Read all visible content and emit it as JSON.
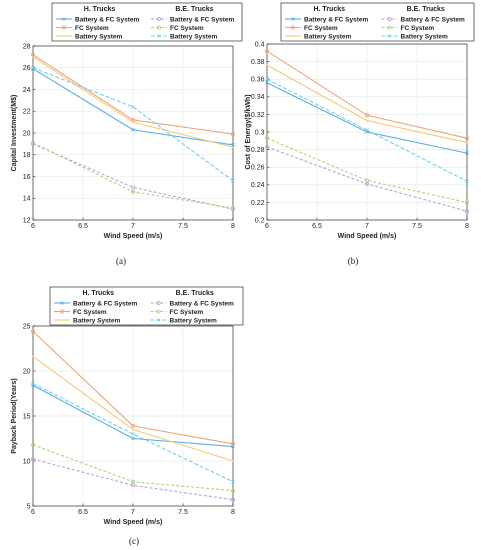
{
  "legend": {
    "group_h": "H. Trucks",
    "group_be": "B.E. Trucks",
    "labels": [
      "Battery & FC System",
      "FC System",
      "Battery System"
    ]
  },
  "colors": {
    "battery_fc": "#5aaee6",
    "fc": "#f2a37c",
    "battery": "#f5cb73",
    "be_battery_fc": "#c49fdc",
    "be_fc": "#a8d880",
    "be_battery": "#6fd3ee"
  },
  "chart_data": [
    {
      "type": "line",
      "caption": "(a)",
      "xlabel": "Wind Speed (m/s)",
      "ylabel": "Capital Investment(M$)",
      "xlim": [
        6,
        8
      ],
      "ylim": [
        12,
        28
      ],
      "xticks": [
        6,
        6.5,
        7,
        7.5,
        8
      ],
      "xtick_labels": [
        "6",
        "6.5",
        "7",
        "7.5",
        "8"
      ],
      "yticks": [
        12,
        14,
        16,
        18,
        20,
        22,
        24,
        26,
        28
      ],
      "ytick_labels": [
        "12",
        "14",
        "16",
        "18",
        "20",
        "22",
        "24",
        "26",
        "28"
      ],
      "x": [
        6,
        7,
        8
      ],
      "series": [
        {
          "name": "Battery & FC System",
          "group": "H. Trucks",
          "values": [
            25.9,
            20.3,
            18.9
          ]
        },
        {
          "name": "FC System",
          "group": "H. Trucks",
          "values": [
            27.2,
            21.2,
            19.9
          ]
        },
        {
          "name": "Battery System",
          "group": "H. Trucks",
          "values": [
            27.0,
            21.0,
            18.7
          ]
        },
        {
          "name": "Battery & FC System",
          "group": "B.E. Trucks",
          "values": [
            19.0,
            15.0,
            13.0
          ]
        },
        {
          "name": "FC System",
          "group": "B.E. Trucks",
          "values": [
            19.1,
            14.6,
            13.1
          ]
        },
        {
          "name": "Battery System",
          "group": "B.E. Trucks",
          "values": [
            26.0,
            22.4,
            15.6
          ]
        }
      ]
    },
    {
      "type": "line",
      "caption": "(b)",
      "xlabel": "Wind Speed (m/s)",
      "ylabel": "Cost of Energy($/kWh)",
      "xlim": [
        6,
        8
      ],
      "ylim": [
        0.2,
        0.4
      ],
      "xticks": [
        6,
        6.5,
        7,
        7.5,
        8
      ],
      "xtick_labels": [
        "6",
        "6.5",
        "7",
        "7.5",
        "8"
      ],
      "yticks": [
        0.2,
        0.22,
        0.24,
        0.26,
        0.28,
        0.3,
        0.32,
        0.34,
        0.36,
        0.38,
        0.4
      ],
      "ytick_labels": [
        "0.2",
        "0.22",
        "0.24",
        "0.26",
        "0.28",
        "0.3",
        "0.32",
        "0.34",
        "0.36",
        "0.38",
        "0.4"
      ],
      "x": [
        6,
        7,
        8
      ],
      "series": [
        {
          "name": "Battery & FC System",
          "group": "H. Trucks",
          "values": [
            0.356,
            0.3,
            0.276
          ]
        },
        {
          "name": "FC System",
          "group": "H. Trucks",
          "values": [
            0.392,
            0.319,
            0.293
          ]
        },
        {
          "name": "Battery System",
          "group": "H. Trucks",
          "values": [
            0.376,
            0.313,
            0.288
          ]
        },
        {
          "name": "Battery & FC System",
          "group": "B.E. Trucks",
          "values": [
            0.283,
            0.241,
            0.21
          ]
        },
        {
          "name": "FC System",
          "group": "B.E. Trucks",
          "values": [
            0.293,
            0.245,
            0.22
          ]
        },
        {
          "name": "Battery System",
          "group": "B.E. Trucks",
          "values": [
            0.36,
            0.302,
            0.244
          ]
        }
      ]
    },
    {
      "type": "line",
      "caption": "(c)",
      "xlabel": "Wind Speed (m/s)",
      "ylabel": "Payback Period(Years)",
      "xlim": [
        6,
        8
      ],
      "ylim": [
        5,
        25
      ],
      "xticks": [
        6,
        6.5,
        7,
        7.5,
        8
      ],
      "xtick_labels": [
        "6",
        "6.5",
        "7",
        "7.5",
        "8"
      ],
      "yticks": [
        5,
        10,
        15,
        20,
        25
      ],
      "ytick_labels": [
        "5",
        "10",
        "15",
        "20",
        "25"
      ],
      "x": [
        6,
        7,
        8
      ],
      "series": [
        {
          "name": "Battery & FC System",
          "group": "H. Trucks",
          "values": [
            18.4,
            12.5,
            11.6
          ]
        },
        {
          "name": "FC System",
          "group": "H. Trucks",
          "values": [
            24.4,
            13.9,
            11.9
          ]
        },
        {
          "name": "Battery System",
          "group": "H. Trucks",
          "values": [
            21.6,
            13.5,
            10.0
          ]
        },
        {
          "name": "Battery & FC System",
          "group": "B.E. Trucks",
          "values": [
            10.2,
            7.3,
            5.7
          ]
        },
        {
          "name": "FC System",
          "group": "B.E. Trucks",
          "values": [
            11.8,
            7.7,
            6.7
          ]
        },
        {
          "name": "Battery System",
          "group": "B.E. Trucks",
          "values": [
            18.6,
            13.0,
            7.7
          ]
        }
      ]
    }
  ]
}
